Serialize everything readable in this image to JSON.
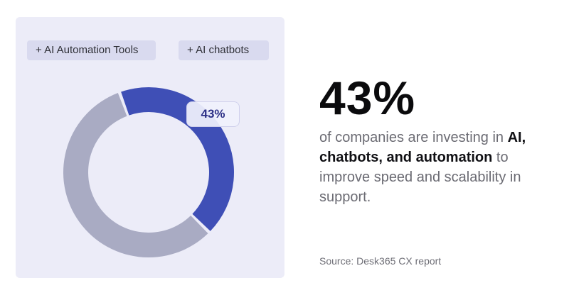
{
  "chart_data": {
    "type": "pie",
    "style": "donut",
    "categories": [
      "AI chatbots and automation",
      "Other"
    ],
    "values": [
      43,
      57
    ],
    "slice_colors": [
      "#3f4fb6",
      "#a9abc3"
    ],
    "data_label": "43%"
  },
  "chips": {
    "automation_tools": "+ AI Automation Tools",
    "chatbots": "+  AI chatbots"
  },
  "headline": {
    "value": "43%"
  },
  "description": {
    "part1": "of companies are investing in ",
    "bold1": "AI,",
    "bold2": "chatbots, and automation",
    "part2": " to improve speed and scalability in support."
  },
  "source": "Source: Desk365 CX report",
  "colors": {
    "card_bg": "#ececf8",
    "accent": "#3f4fb6",
    "muted": "#a9abc3"
  }
}
